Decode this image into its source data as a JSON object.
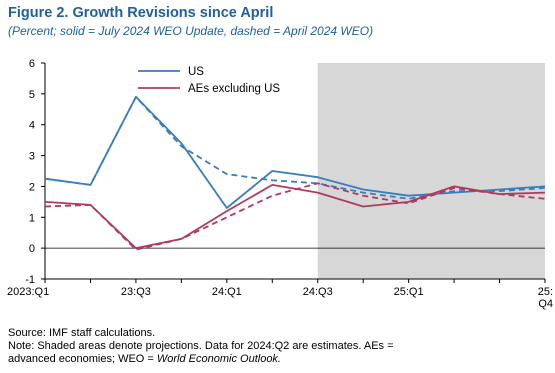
{
  "title": "Figure 2.  Growth Revisions since April",
  "subtitle": "(Percent; solid  = July 2024 WEO Update, dashed = April 2024 WEO)",
  "source": "Source: IMF staff calculations.",
  "note_line1": "Note: Shaded areas denote projections. Data for 2024:Q2 are estimates. AEs =",
  "note_line2_plain": "advanced economies; WEO = ",
  "note_line2_italic": "World Economic Outlook.",
  "colors": {
    "us": "#3a7dbd",
    "aes": "#b03a5e",
    "shade": "#d7d7d7"
  },
  "chart_data": {
    "type": "line",
    "title": "Growth Revisions since April",
    "ylim": [
      -1,
      6
    ],
    "yticks": [
      -1,
      0,
      1,
      2,
      3,
      4,
      5,
      6
    ],
    "x": [
      "2023:Q1",
      "2023:Q2",
      "2023:Q3",
      "2023:Q4",
      "2024:Q1",
      "2024:Q2",
      "2024:Q3",
      "2024:Q4",
      "2025:Q1",
      "2025:Q2",
      "2025:Q3",
      "2025:Q4"
    ],
    "xtick_labels": [
      {
        "index": 0,
        "label": "2023:Q1"
      },
      {
        "index": 2,
        "label": "23:Q3"
      },
      {
        "index": 4,
        "label": "24:Q1"
      },
      {
        "index": 6,
        "label": "24:Q3"
      },
      {
        "index": 8,
        "label": "25:Q1"
      },
      {
        "index": 10.5,
        "label": "25:",
        "label2": "Q4"
      }
    ],
    "shaded_from_index": 6,
    "legend_position": "top-left",
    "series": [
      {
        "name": "US",
        "key": "us",
        "style": "solid",
        "values": [
          2.25,
          2.05,
          4.9,
          3.4,
          1.3,
          2.5,
          2.3,
          1.9,
          1.7,
          1.8,
          1.9,
          2.0
        ]
      },
      {
        "name": "",
        "key": "us",
        "style": "dashed",
        "values": [
          2.25,
          2.05,
          4.9,
          3.3,
          2.4,
          2.2,
          2.1,
          1.8,
          1.6,
          1.85,
          1.85,
          1.95
        ]
      },
      {
        "name": "AEs excluding US",
        "key": "aes",
        "style": "solid",
        "values": [
          1.5,
          1.4,
          0.0,
          0.3,
          1.2,
          2.05,
          1.8,
          1.35,
          1.5,
          2.0,
          1.75,
          1.8
        ]
      },
      {
        "name": "",
        "key": "aes",
        "style": "dashed",
        "values": [
          1.35,
          1.4,
          -0.05,
          0.3,
          1.0,
          1.7,
          2.1,
          1.7,
          1.45,
          1.95,
          1.75,
          1.6
        ]
      }
    ]
  }
}
